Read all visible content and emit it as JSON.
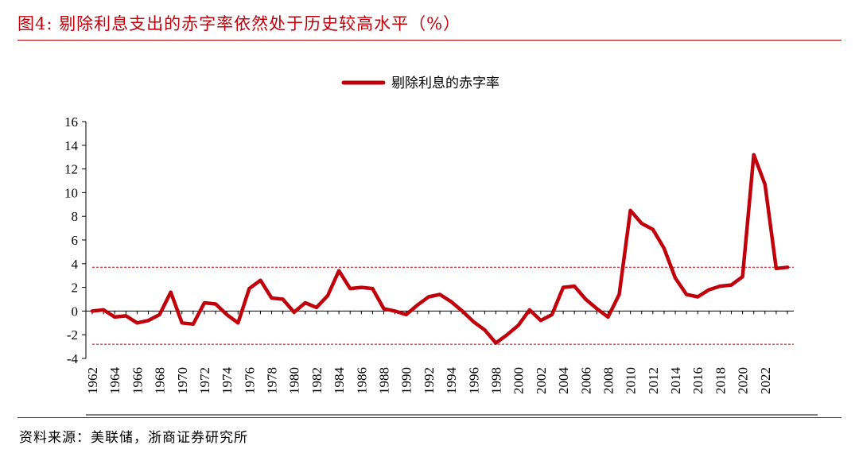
{
  "figure": {
    "title": "图4:  剔除利息支出的赤字率依然处于历史较高水平（%）",
    "source": "资料来源：美联储，浙商证券研究所"
  },
  "colors": {
    "accent": "#c0000a",
    "series": "#c0000a",
    "refline": "#c0000a",
    "axis": "#000000"
  },
  "chart_data": {
    "type": "line",
    "title": "",
    "xlabel": "",
    "ylabel": "",
    "ylim": [
      -4,
      16
    ],
    "yticks": [
      16,
      14,
      12,
      10,
      8,
      6,
      4,
      2,
      0,
      -2,
      -4
    ],
    "xticks": [
      "1962",
      "1964",
      "1966",
      "1968",
      "1970",
      "1972",
      "1974",
      "1976",
      "1978",
      "1980",
      "1982",
      "1984",
      "1986",
      "1988",
      "1990",
      "1992",
      "1994",
      "1996",
      "1998",
      "2000",
      "2002",
      "2004",
      "2006",
      "2008",
      "2010",
      "2012",
      "2014",
      "2016",
      "2018",
      "2020",
      "2022"
    ],
    "grid": false,
    "legend": "top-center",
    "x": [
      1962,
      1963,
      1964,
      1965,
      1966,
      1967,
      1968,
      1969,
      1970,
      1971,
      1972,
      1973,
      1974,
      1975,
      1976,
      1977,
      1978,
      1979,
      1980,
      1981,
      1982,
      1983,
      1984,
      1985,
      1986,
      1987,
      1988,
      1989,
      1990,
      1991,
      1992,
      1993,
      1994,
      1995,
      1996,
      1997,
      1998,
      1999,
      2000,
      2001,
      2002,
      2003,
      2004,
      2005,
      2006,
      2007,
      2008,
      2009,
      2010,
      2011,
      2012,
      2013,
      2014,
      2015,
      2016,
      2017,
      2018,
      2019,
      2020,
      2021,
      2022,
      2023,
      2024
    ],
    "series": [
      {
        "name": "剔除利息的赤字率",
        "values": [
          0.0,
          0.1,
          -0.5,
          -0.4,
          -1.0,
          -0.8,
          -0.3,
          1.6,
          -1.0,
          -1.1,
          0.7,
          0.6,
          -0.3,
          -1.0,
          1.9,
          2.6,
          1.1,
          1.0,
          -0.1,
          0.7,
          0.3,
          1.3,
          3.4,
          1.9,
          2.0,
          1.9,
          0.2,
          0.0,
          -0.3,
          0.5,
          1.2,
          1.4,
          0.8,
          0.0,
          -0.9,
          -1.6,
          -2.7,
          -2.0,
          -1.2,
          0.1,
          -0.8,
          -0.3,
          2.0,
          2.1,
          1.0,
          0.2,
          -0.5,
          1.4,
          8.5,
          7.4,
          6.9,
          5.3,
          2.8,
          1.4,
          1.2,
          1.8,
          2.1,
          2.2,
          2.9,
          13.2,
          10.7,
          3.6,
          3.7
        ]
      }
    ],
    "reference_lines": [
      3.7,
      -2.8
    ]
  }
}
